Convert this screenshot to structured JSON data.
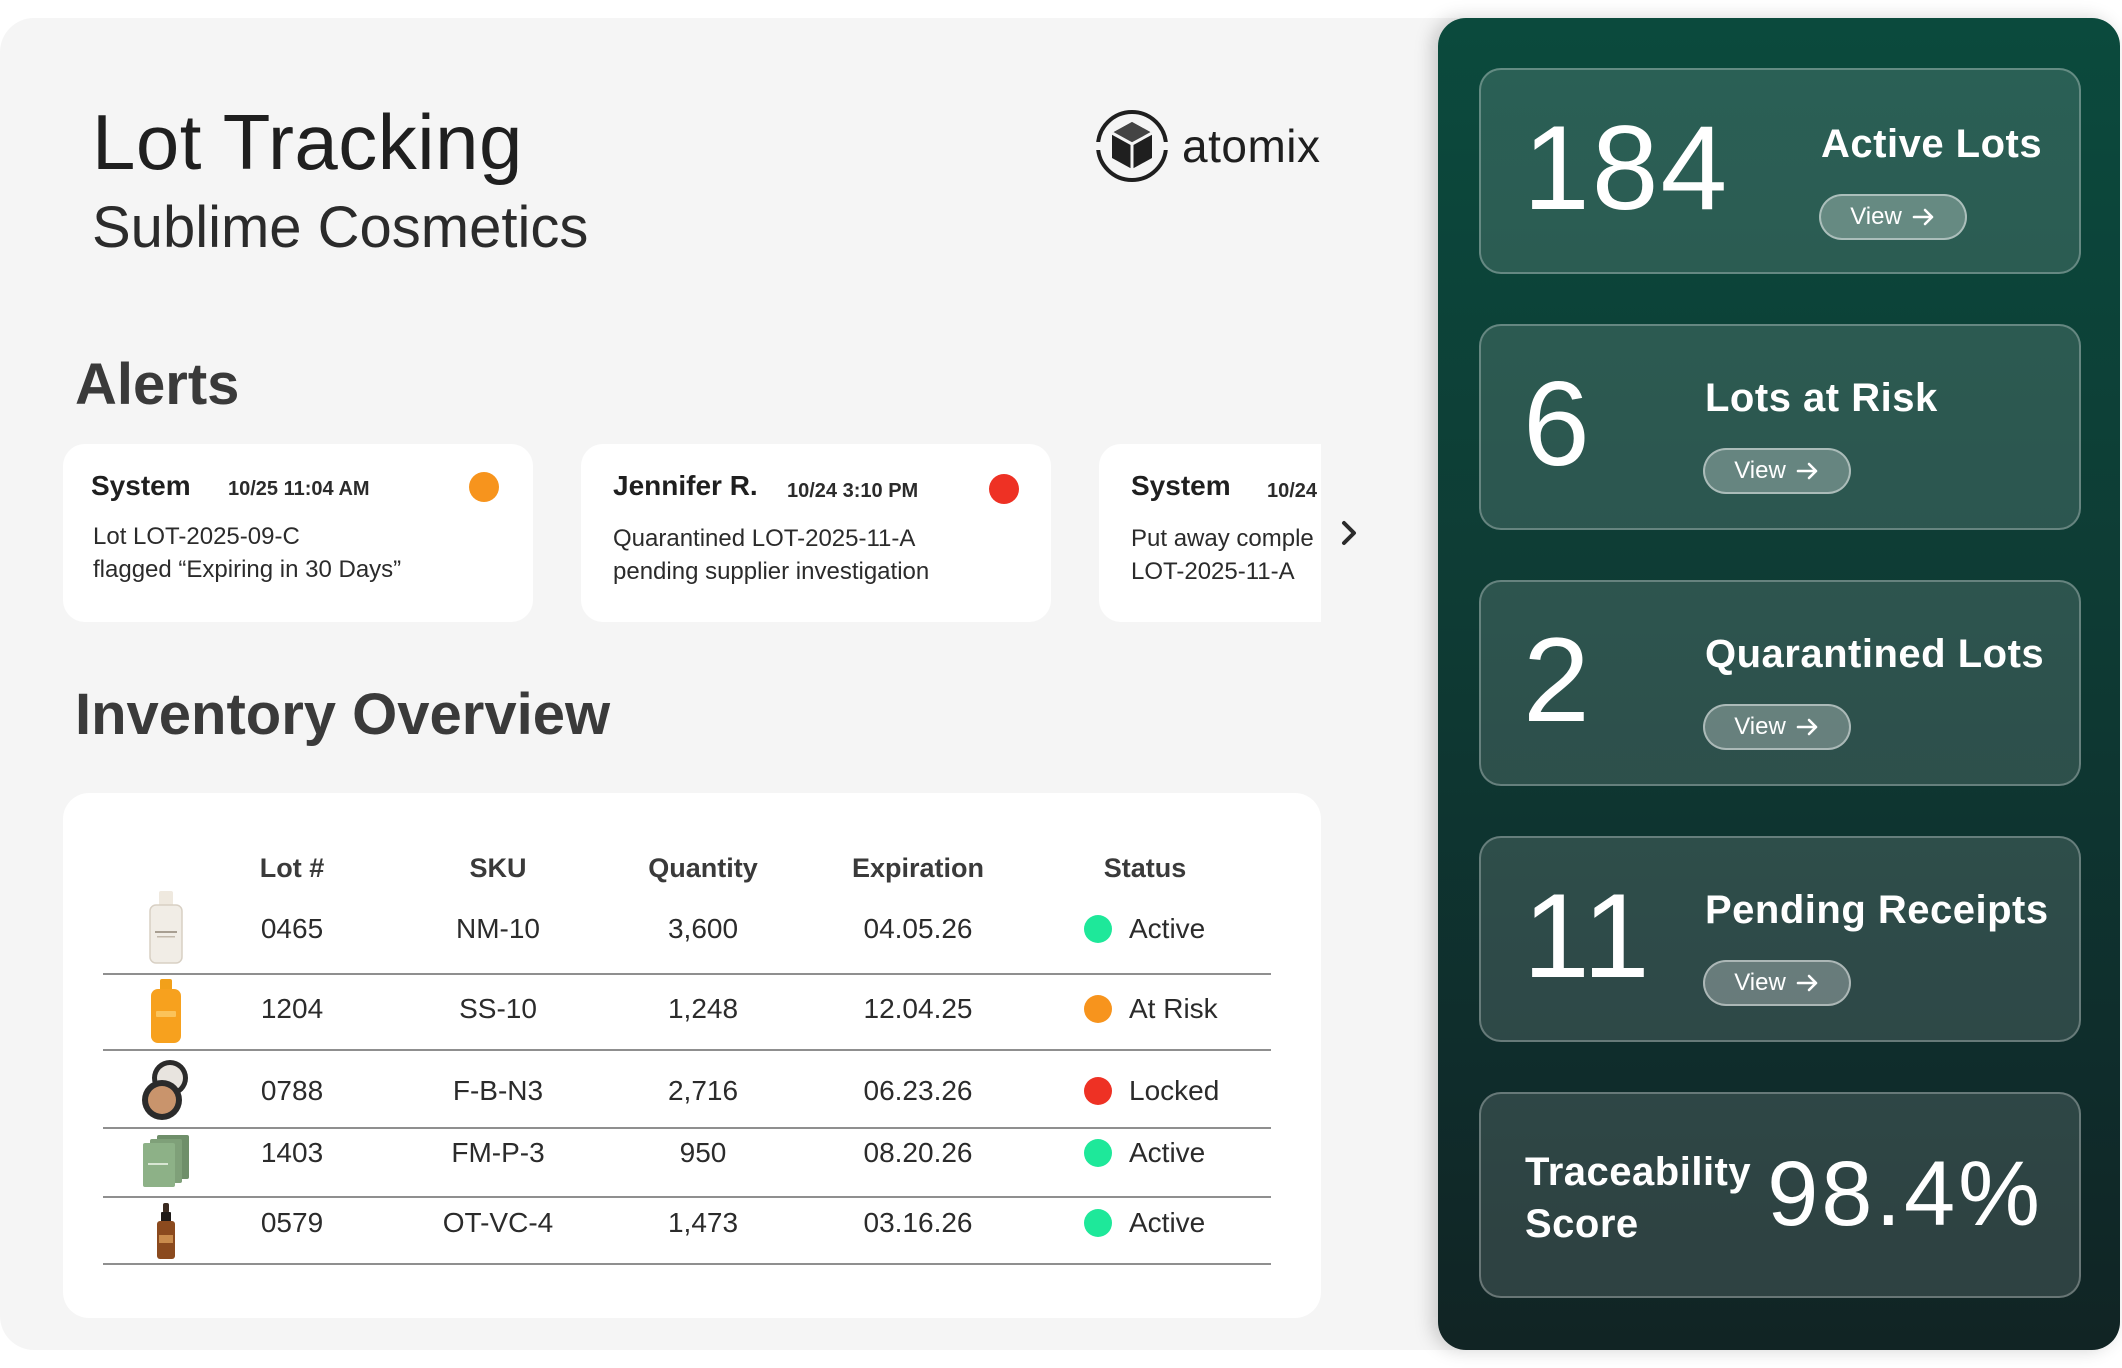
{
  "header": {
    "title": "Lot Tracking",
    "subtitle": "Sublime Cosmetics",
    "logo_text": "atomix"
  },
  "alerts": {
    "heading": "Alerts",
    "items": [
      {
        "author": "System",
        "time": "10/25 11:04 AM",
        "message": "Lot LOT-2025-09-C\nflagged “Expiring in 30 Days”",
        "dot_color": "#f7941d"
      },
      {
        "author": "Jennifer R.",
        "time": "10/24 3:10 PM",
        "message": "Quarantined LOT-2025-11-A\npending supplier investigation",
        "dot_color": "#ee3124"
      },
      {
        "author": "System",
        "time": "10/24",
        "message": "Put away comple\nLOT-2025-11-A",
        "dot_color": ""
      }
    ],
    "next_icon": "chevron-right-icon"
  },
  "inventory": {
    "heading": "Inventory Overview",
    "columns": [
      "Lot #",
      "SKU",
      "Quantity",
      "Expiration",
      "Status"
    ],
    "rows": [
      {
        "product_icon": "lotion-bottle-icon",
        "lot": "0465",
        "sku": "NM-10",
        "quantity": "3,600",
        "expiration": "04.05.26",
        "status": "Active",
        "status_color": "#1ee89a"
      },
      {
        "product_icon": "orange-bottle-icon",
        "lot": "1204",
        "sku": "SS-10",
        "quantity": "1,248",
        "expiration": "12.04.25",
        "status": "At Risk",
        "status_color": "#f7941d"
      },
      {
        "product_icon": "compact-icon",
        "lot": "0788",
        "sku": "F-B-N3",
        "quantity": "2,716",
        "expiration": "06.23.26",
        "status": "Locked",
        "status_color": "#ee3124"
      },
      {
        "product_icon": "face-mask-pack-icon",
        "lot": "1403",
        "sku": "FM-P-3",
        "quantity": "950",
        "expiration": "08.20.26",
        "status": "Active",
        "status_color": "#1ee89a"
      },
      {
        "product_icon": "dropper-bottle-icon",
        "lot": "0579",
        "sku": "OT-VC-4",
        "quantity": "1,473",
        "expiration": "03.16.26",
        "status": "Active",
        "status_color": "#1ee89a"
      }
    ]
  },
  "kpis": [
    {
      "value": "184",
      "label": "Active Lots",
      "button": "View"
    },
    {
      "value": "6",
      "label": "Lots at Risk",
      "button": "View"
    },
    {
      "value": "2",
      "label": "Quarantined Lots",
      "button": "View"
    },
    {
      "value": "11",
      "label": "Pending Receipts",
      "button": "View"
    }
  ],
  "traceability": {
    "label": "Traceability Score",
    "value": "98.4%"
  }
}
